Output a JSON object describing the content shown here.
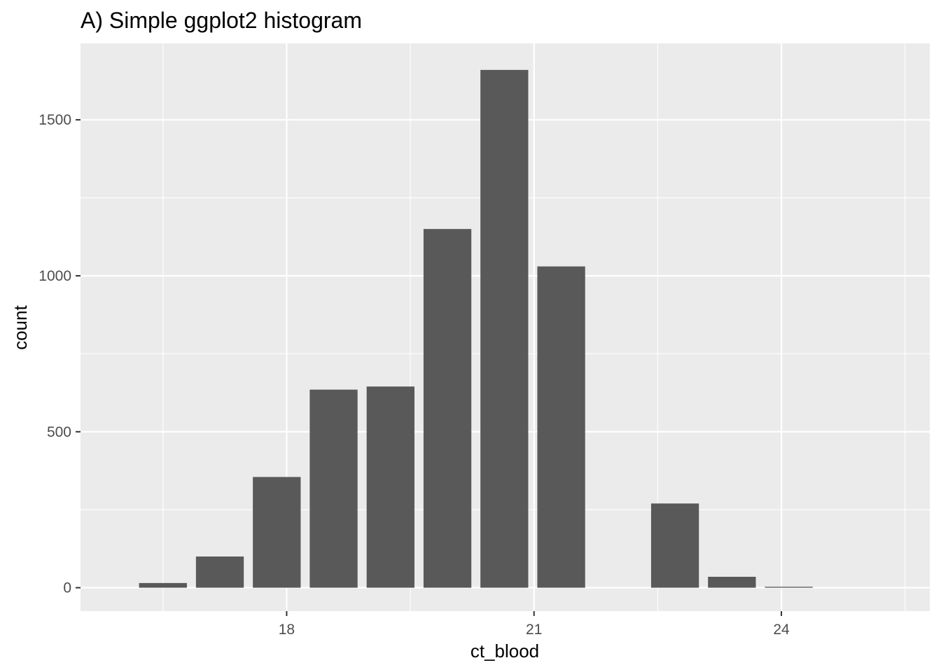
{
  "chart_data": {
    "type": "bar",
    "title": "A) Simple ggplot2 histogram",
    "xlabel": "ct_blood",
    "ylabel": "count",
    "x": [
      16.5,
      17.19,
      17.88,
      18.57,
      19.26,
      19.95,
      20.64,
      21.33,
      22.02,
      22.71,
      23.4,
      24.09
    ],
    "values": [
      15,
      100,
      355,
      635,
      645,
      1150,
      1660,
      1030,
      0,
      270,
      35,
      3
    ],
    "xlim": [
      15.5,
      25.8
    ],
    "ylim": [
      -75,
      1745
    ],
    "xticks": [
      18,
      21,
      24
    ],
    "yticks": [
      0,
      500,
      1000,
      1500
    ],
    "grid": true,
    "colors": {
      "bar": "#595959",
      "panel": "#ebebeb",
      "grid": "#ffffff"
    }
  }
}
